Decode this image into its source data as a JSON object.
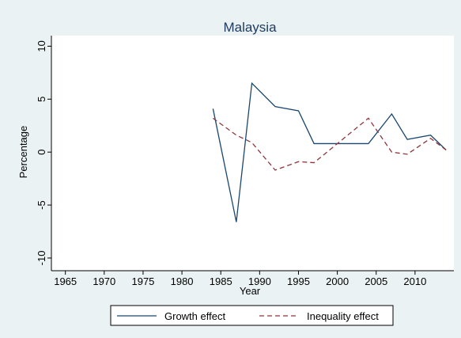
{
  "chart_data": {
    "type": "line",
    "title": "Malaysia",
    "x_label": "Year",
    "y_label": "Percentage",
    "x": [
      1984,
      1987,
      1989,
      1992,
      1995,
      1997,
      2004,
      2007,
      2009,
      2012,
      2014
    ],
    "series": [
      {
        "name": "Growth effect",
        "color": "#1a476f",
        "dash": "solid",
        "values": [
          4.1,
          -6.6,
          6.5,
          4.3,
          3.9,
          0.8,
          0.8,
          3.6,
          1.2,
          1.6,
          0.2
        ]
      },
      {
        "name": "Inequality effect",
        "color": "#90353b",
        "dash": "dashed",
        "values": [
          3.2,
          1.6,
          0.9,
          -1.7,
          -0.9,
          -1.0,
          3.2,
          0.0,
          -0.2,
          1.3,
          0.2
        ]
      }
    ],
    "xlim": [
      1963.2,
      2015
    ],
    "xticks": [
      1965,
      1970,
      1975,
      1980,
      1985,
      1990,
      1995,
      2000,
      2005,
      2010
    ],
    "ylim": [
      -11.2,
      11
    ],
    "yticks": [
      -10,
      -5,
      0,
      5,
      10
    ],
    "grid": false,
    "legend": "bottom"
  }
}
